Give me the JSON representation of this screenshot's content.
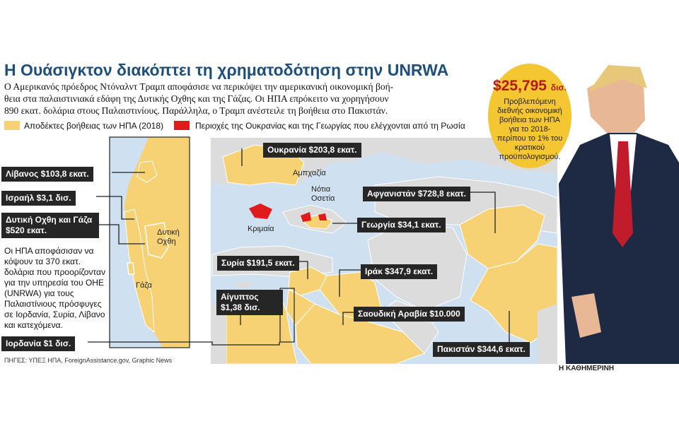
{
  "headline": "Η Ουάσιγκτον διακόπτει τη χρηματοδότηση στην UNRWA",
  "intro_lines": [
    "Ο Αμερικανός πρόεδρος Ντόναλντ Τραμπ αποφάσισε να περικόψει την αμερικανική οικονομική βοή-",
    "θεια στα παλαιστινιακά εδάφη της Δυτικής Οχθης και της Γάζας. Οι ΗΠΑ επρόκειτο να χορηγήσουν",
    "890 εκατ. δολάρια στους Παλαιστινίους. Παράλληλα, ο Τραμπ ανέστειλε τη βοήθεια στο Πακιστάν."
  ],
  "legend": {
    "recipients": "Αποδέκτες βοήθειας των ΗΠΑ (2018)",
    "russia_controlled": "Περιοχές της Ουκρανίας και της Γεωργίας που ελέγχονται από τη Ρωσία"
  },
  "colors": {
    "recipient": "#f6d275",
    "other_land": "#dcdcdc",
    "sea": "#cfe0f0",
    "russia": "#e01b1b",
    "callout": "#262626",
    "headline": "#1f4f78",
    "badge": "#f4c632"
  },
  "callouts": {
    "lebanon": "Λίβανος $103,8 εκατ.",
    "israel": "Ισραήλ $3,1 δισ.",
    "westbank_gaza": "Δυτική Οχθη και Γάζα $520 εκατ.",
    "jordan": "Ιορδανία $1 δισ.",
    "ukraine": "Ουκρανία $203,8 εκατ.",
    "afghanistan": "Αφγανιστάν $728,8 εκατ.",
    "georgia": "Γεωργία $34,1 εκατ.",
    "syria": "Συρία $191,5 εκατ.",
    "iraq": "Ιράκ $347,9 εκατ.",
    "egypt": "Αίγυπτος $1,38 δισ.",
    "saudi": "Σαουδική Αραβία $10.000",
    "pakistan": "Πακιστάν $344,6 εκατ."
  },
  "note": "Οι ΗΠΑ αποφάσισαν να κόψουν τα 370 εκατ. δολάρια που προορίζονταν για την υπηρεσία του ΟΗΕ (UNRWA) για τους Παλαιστίνιους πρόσφυγες σε Ιορδανία, Συρία, Λίβανο και κατεχόμενα.",
  "map_labels": {
    "west_bank": "Δυτική Οχθη",
    "gaza": "Γάζα",
    "abkhazia": "Αμπχαζία",
    "south_ossetia": "Νότια Οσετία",
    "crimea": "Κριμαία"
  },
  "badge": {
    "amount": "$25,795",
    "unit": "δισ.",
    "text": "Προβλεπόμενη διεθνής οικονομική βοήθεια των ΗΠΑ για το 2018- περίπου το 1% του κρατικού προϋπολογισμού."
  },
  "source": "ΠΗΓΕΣ: ΥΠΕΞ ΗΠΑ, ForeignAssistance.gov, Graphic News",
  "brand": "Η ΚΑΘΗΜΕΡΙΝΗ"
}
